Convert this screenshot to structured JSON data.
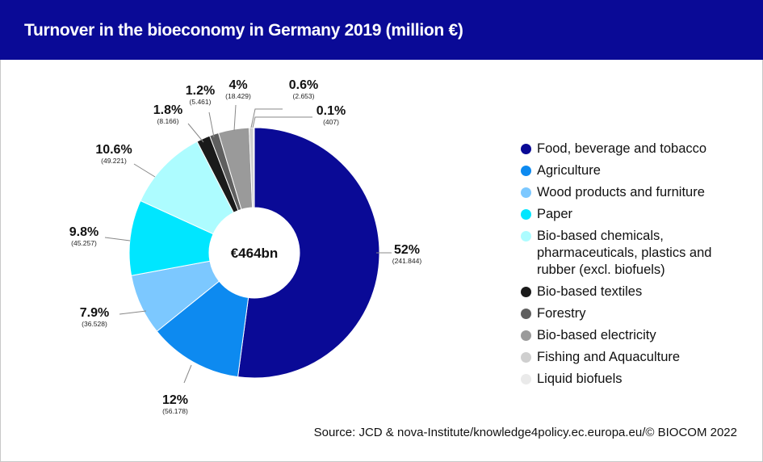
{
  "title": "Turnover in the bioeconomy in Germany 2019 (million €)",
  "source": "Source: JCD & nova-Institute/knowledge4policy.ec.europa.eu/© BIOCOM 2022",
  "chart_data": {
    "type": "pie",
    "title": "Turnover in the bioeconomy in Germany 2019 (million €)",
    "center_label": "€464bn",
    "slices": [
      {
        "name": "Food, beverage and tobacco",
        "percent_label": "52%",
        "value": 241844,
        "value_label": "(241.844)",
        "color": "#0a0a96"
      },
      {
        "name": "Agriculture",
        "percent_label": "12%",
        "value": 56178,
        "value_label": "(56.178)",
        "color": "#0d8af0"
      },
      {
        "name": "Wood products and furniture",
        "percent_label": "7.9%",
        "value": 36528,
        "value_label": "(36.528)",
        "color": "#7cc8ff"
      },
      {
        "name": "Paper",
        "percent_label": "9.8%",
        "value": 45257,
        "value_label": "(45.257)",
        "color": "#00e6ff"
      },
      {
        "name": "Bio-based chemicals, pharmaceuticals, plastics and rubber (excl. biofuels)",
        "percent_label": "10.6%",
        "value": 49221,
        "value_label": "(49.221)",
        "color": "#adfcff"
      },
      {
        "name": "Bio-based textiles",
        "percent_label": "1.8%",
        "value": 8166,
        "value_label": "(8.166)",
        "color": "#1a1a1a"
      },
      {
        "name": "Forestry",
        "percent_label": "1.2%",
        "value": 5461,
        "value_label": "(5.461)",
        "color": "#5f5f5f"
      },
      {
        "name": "Bio-based electricity",
        "percent_label": "4%",
        "value": 18429,
        "value_label": "(18.429)",
        "color": "#9a9a9a"
      },
      {
        "name": "Fishing and Aquaculture",
        "percent_label": "0.6%",
        "value": 2653,
        "value_label": "(2.653)",
        "color": "#cfcfcf"
      },
      {
        "name": "Liquid biofuels",
        "percent_label": "0.1%",
        "value": 407,
        "value_label": "(407)",
        "color": "#eaeaea"
      }
    ],
    "legend_position": "right"
  }
}
